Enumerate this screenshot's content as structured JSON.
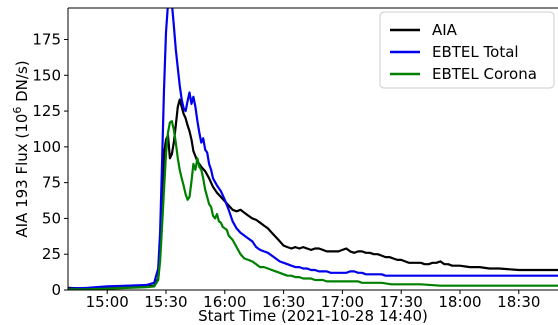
{
  "chart_data": {
    "type": "line",
    "xlabel": "Start Time (2021-10-28 14:40)",
    "ylabel_prefix": "AIA 193 Flux (10",
    "ylabel_exp": "6",
    "ylabel_suffix": " DN/s)",
    "x_unit": "minutes after 2021-10-28 14:40",
    "xlim": [
      0,
      250
    ],
    "ylim": [
      0,
      197
    ],
    "x_ticks": [
      {
        "x": 20,
        "label": "15:00"
      },
      {
        "x": 50,
        "label": "15:30"
      },
      {
        "x": 80,
        "label": "16:00"
      },
      {
        "x": 110,
        "label": "16:30"
      },
      {
        "x": 140,
        "label": "17:00"
      },
      {
        "x": 170,
        "label": "17:30"
      },
      {
        "x": 200,
        "label": "18:00"
      },
      {
        "x": 230,
        "label": "18:30"
      }
    ],
    "y_ticks": [
      {
        "y": 0,
        "label": "0"
      },
      {
        "y": 25,
        "label": "25"
      },
      {
        "y": 50,
        "label": "50"
      },
      {
        "y": 75,
        "label": "75"
      },
      {
        "y": 100,
        "label": "100"
      },
      {
        "y": 125,
        "label": "125"
      },
      {
        "y": 150,
        "label": "150"
      },
      {
        "y": 175,
        "label": "175"
      }
    ],
    "grid": false,
    "legend_position": "top-right",
    "series": [
      {
        "name": "AIA",
        "color": "#000000",
        "points": [
          [
            0,
            1.5
          ],
          [
            10,
            1
          ],
          [
            20,
            1.5
          ],
          [
            30,
            2
          ],
          [
            40,
            2.5
          ],
          [
            44,
            3
          ],
          [
            46,
            8
          ],
          [
            47,
            25
          ],
          [
            48,
            60
          ],
          [
            49,
            95
          ],
          [
            50,
            105
          ],
          [
            51,
            108
          ],
          [
            52,
            92
          ],
          [
            53,
            95
          ],
          [
            54,
            103
          ],
          [
            55,
            115
          ],
          [
            56,
            128
          ],
          [
            57,
            133
          ],
          [
            58,
            128
          ],
          [
            59,
            123
          ],
          [
            60,
            120
          ],
          [
            61,
            115
          ],
          [
            62,
            111
          ],
          [
            63,
            105
          ],
          [
            64,
            97
          ],
          [
            66,
            90
          ],
          [
            68,
            86
          ],
          [
            70,
            83
          ],
          [
            72,
            78
          ],
          [
            74,
            72
          ],
          [
            76,
            68
          ],
          [
            78,
            65
          ],
          [
            80,
            62
          ],
          [
            82,
            59
          ],
          [
            84,
            56
          ],
          [
            86,
            55
          ],
          [
            88,
            56
          ],
          [
            90,
            54
          ],
          [
            92,
            52
          ],
          [
            94,
            50
          ],
          [
            96,
            49
          ],
          [
            98,
            47
          ],
          [
            100,
            45
          ],
          [
            102,
            43
          ],
          [
            104,
            40
          ],
          [
            106,
            37
          ],
          [
            108,
            34
          ],
          [
            110,
            31
          ],
          [
            112,
            30
          ],
          [
            114,
            29
          ],
          [
            116,
            30
          ],
          [
            118,
            29
          ],
          [
            120,
            30
          ],
          [
            122,
            29
          ],
          [
            124,
            28
          ],
          [
            126,
            29
          ],
          [
            128,
            29
          ],
          [
            130,
            28
          ],
          [
            132,
            27
          ],
          [
            134,
            27
          ],
          [
            136,
            27
          ],
          [
            138,
            27
          ],
          [
            140,
            28
          ],
          [
            142,
            29
          ],
          [
            144,
            27
          ],
          [
            146,
            26
          ],
          [
            148,
            27
          ],
          [
            150,
            27
          ],
          [
            152,
            26
          ],
          [
            154,
            26
          ],
          [
            156,
            25
          ],
          [
            158,
            25
          ],
          [
            160,
            24
          ],
          [
            162,
            23
          ],
          [
            164,
            23
          ],
          [
            166,
            22
          ],
          [
            168,
            21
          ],
          [
            170,
            21
          ],
          [
            172,
            20
          ],
          [
            174,
            19
          ],
          [
            176,
            19
          ],
          [
            178,
            19
          ],
          [
            180,
            19
          ],
          [
            182,
            18
          ],
          [
            184,
            18
          ],
          [
            186,
            19
          ],
          [
            188,
            19
          ],
          [
            190,
            20
          ],
          [
            192,
            18
          ],
          [
            194,
            18
          ],
          [
            196,
            17
          ],
          [
            198,
            17
          ],
          [
            200,
            17
          ],
          [
            205,
            16
          ],
          [
            210,
            16
          ],
          [
            215,
            15
          ],
          [
            220,
            15
          ],
          [
            230,
            14
          ],
          [
            240,
            14
          ],
          [
            250,
            14
          ]
        ]
      },
      {
        "name": "EBTEL Total",
        "color": "#0000ee",
        "points": [
          [
            0,
            1
          ],
          [
            10,
            1.5
          ],
          [
            20,
            2.5
          ],
          [
            30,
            3
          ],
          [
            40,
            3.5
          ],
          [
            44,
            5
          ],
          [
            46,
            15
          ],
          [
            47,
            40
          ],
          [
            48,
            90
          ],
          [
            49,
            140
          ],
          [
            50,
            180
          ],
          [
            51,
            200
          ],
          [
            52,
            204
          ],
          [
            53,
            200
          ],
          [
            54,
            185
          ],
          [
            55,
            168
          ],
          [
            56,
            155
          ],
          [
            57,
            143
          ],
          [
            58,
            133
          ],
          [
            59,
            127
          ],
          [
            60,
            125
          ],
          [
            61,
            132
          ],
          [
            62,
            138
          ],
          [
            63,
            130
          ],
          [
            64,
            135
          ],
          [
            65,
            128
          ],
          [
            66,
            118
          ],
          [
            67,
            110
          ],
          [
            68,
            103
          ],
          [
            69,
            106
          ],
          [
            70,
            98
          ],
          [
            71,
            96
          ],
          [
            72,
            88
          ],
          [
            73,
            84
          ],
          [
            74,
            78
          ],
          [
            76,
            73
          ],
          [
            78,
            69
          ],
          [
            80,
            63
          ],
          [
            82,
            56
          ],
          [
            84,
            48
          ],
          [
            86,
            43
          ],
          [
            88,
            40
          ],
          [
            90,
            38
          ],
          [
            92,
            36
          ],
          [
            94,
            34
          ],
          [
            96,
            30
          ],
          [
            98,
            28
          ],
          [
            100,
            27
          ],
          [
            102,
            26
          ],
          [
            104,
            24
          ],
          [
            106,
            22
          ],
          [
            108,
            20
          ],
          [
            110,
            19
          ],
          [
            112,
            18
          ],
          [
            114,
            17
          ],
          [
            116,
            16
          ],
          [
            118,
            16
          ],
          [
            120,
            15
          ],
          [
            122,
            15
          ],
          [
            124,
            14
          ],
          [
            126,
            14
          ],
          [
            128,
            13
          ],
          [
            130,
            13
          ],
          [
            132,
            13
          ],
          [
            134,
            12
          ],
          [
            136,
            12
          ],
          [
            138,
            12
          ],
          [
            140,
            12
          ],
          [
            142,
            12
          ],
          [
            144,
            13
          ],
          [
            146,
            13
          ],
          [
            148,
            12
          ],
          [
            150,
            12
          ],
          [
            152,
            11
          ],
          [
            154,
            11
          ],
          [
            156,
            11
          ],
          [
            158,
            11
          ],
          [
            160,
            11
          ],
          [
            162,
            10
          ],
          [
            164,
            10
          ],
          [
            166,
            10
          ],
          [
            168,
            10
          ],
          [
            170,
            10
          ],
          [
            175,
            10
          ],
          [
            180,
            10
          ],
          [
            185,
            10
          ],
          [
            190,
            10
          ],
          [
            200,
            10
          ],
          [
            210,
            10
          ],
          [
            220,
            10
          ],
          [
            230,
            10
          ],
          [
            240,
            10
          ],
          [
            250,
            10
          ]
        ]
      },
      {
        "name": "EBTEL Corona",
        "color": "#008000",
        "points": [
          [
            0,
            0.5
          ],
          [
            10,
            0.5
          ],
          [
            20,
            1
          ],
          [
            30,
            1.5
          ],
          [
            40,
            2
          ],
          [
            44,
            2.5
          ],
          [
            46,
            7
          ],
          [
            47,
            20
          ],
          [
            48,
            45
          ],
          [
            49,
            70
          ],
          [
            50,
            95
          ],
          [
            51,
            110
          ],
          [
            52,
            117
          ],
          [
            53,
            118
          ],
          [
            54,
            112
          ],
          [
            55,
            103
          ],
          [
            56,
            92
          ],
          [
            57,
            84
          ],
          [
            58,
            78
          ],
          [
            59,
            73
          ],
          [
            60,
            67
          ],
          [
            61,
            63
          ],
          [
            62,
            65
          ],
          [
            63,
            76
          ],
          [
            64,
            88
          ],
          [
            65,
            84
          ],
          [
            66,
            92
          ],
          [
            67,
            86
          ],
          [
            68,
            84
          ],
          [
            69,
            78
          ],
          [
            70,
            70
          ],
          [
            71,
            65
          ],
          [
            72,
            60
          ],
          [
            73,
            58
          ],
          [
            74,
            52
          ],
          [
            75,
            50
          ],
          [
            76,
            53
          ],
          [
            77,
            48
          ],
          [
            78,
            47
          ],
          [
            79,
            44
          ],
          [
            80,
            43
          ],
          [
            81,
            42
          ],
          [
            82,
            38
          ],
          [
            84,
            35
          ],
          [
            86,
            30
          ],
          [
            88,
            25
          ],
          [
            90,
            22
          ],
          [
            92,
            21
          ],
          [
            94,
            20
          ],
          [
            96,
            18
          ],
          [
            98,
            16
          ],
          [
            100,
            16
          ],
          [
            102,
            15
          ],
          [
            104,
            14
          ],
          [
            106,
            13
          ],
          [
            108,
            12
          ],
          [
            110,
            11
          ],
          [
            112,
            10
          ],
          [
            114,
            10
          ],
          [
            116,
            9
          ],
          [
            118,
            9
          ],
          [
            120,
            8
          ],
          [
            122,
            8
          ],
          [
            124,
            8
          ],
          [
            126,
            7
          ],
          [
            128,
            7
          ],
          [
            130,
            7
          ],
          [
            132,
            6
          ],
          [
            134,
            6
          ],
          [
            136,
            6
          ],
          [
            138,
            6
          ],
          [
            140,
            6
          ],
          [
            142,
            6
          ],
          [
            144,
            6
          ],
          [
            146,
            6
          ],
          [
            148,
            6
          ],
          [
            150,
            5
          ],
          [
            155,
            5
          ],
          [
            160,
            5
          ],
          [
            165,
            4
          ],
          [
            170,
            4
          ],
          [
            175,
            4
          ],
          [
            180,
            4
          ],
          [
            190,
            3
          ],
          [
            200,
            3
          ],
          [
            210,
            3
          ],
          [
            220,
            3
          ],
          [
            230,
            3
          ],
          [
            240,
            3
          ],
          [
            250,
            3
          ]
        ]
      }
    ]
  }
}
